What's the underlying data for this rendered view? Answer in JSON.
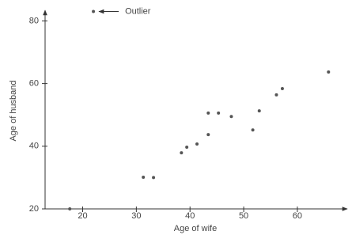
{
  "chart_data": {
    "type": "scatter",
    "x_label": "Age of wife",
    "y_label": "Age of husband",
    "annotation": "Outlier",
    "x": [
      17.6,
      22,
      31.3,
      33.2,
      38.4,
      39.4,
      41.3,
      43.4,
      43.4,
      45.3,
      47.7,
      51.7,
      52.9,
      56.1,
      57.2,
      65.8
    ],
    "values": [
      20,
      83,
      30.1,
      30,
      37.9,
      39.7,
      40.7,
      43.7,
      50.6,
      50.6,
      49.5,
      45.2,
      51.3,
      56.4,
      58.4,
      63.7
    ],
    "color": "#555555",
    "xlim": [
      13,
      69
    ],
    "xticks": [
      20,
      30,
      40,
      50,
      60
    ],
    "ylim": [
      20,
      84
    ],
    "yticks": [
      20,
      40,
      60,
      80
    ]
  }
}
